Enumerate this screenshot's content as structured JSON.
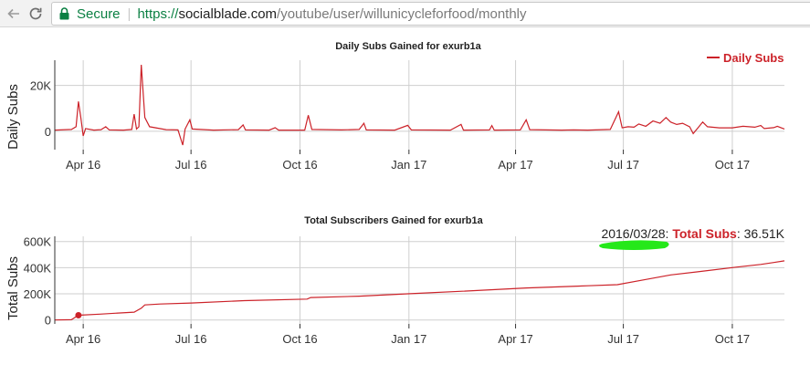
{
  "browser": {
    "back_icon": "back-arrow-icon",
    "reload_icon": "reload-icon",
    "lock_icon": "lock-icon",
    "secure_label": "Secure",
    "url_scheme": "https://",
    "url_host": "socialblade.com",
    "url_path": "/youtube/user/willunicycleforfood/monthly",
    "secure_color": "#0b8043"
  },
  "chart_data": [
    {
      "type": "line",
      "title": "Daily Subs Gained for exurb1a",
      "ylabel": "Daily Subs",
      "legend": "Daily Subs",
      "legend_position": "top-right",
      "color": "#cc2229",
      "grid": true,
      "x_ticks": [
        "Apr 16",
        "Jul 16",
        "Oct 16",
        "Jan 17",
        "Apr 17",
        "Jul 17",
        "Oct 17"
      ],
      "y_ticks": [
        "20K",
        "0"
      ],
      "xlim": [
        "2016-03-08",
        "2017-11-14"
      ],
      "ylim": [
        -8000,
        31000
      ],
      "series": [
        {
          "name": "Daily Subs",
          "points": [
            [
              "2016-03-08",
              500
            ],
            [
              "2016-03-22",
              800
            ],
            [
              "2016-03-26",
              2000
            ],
            [
              "2016-03-28",
              13000
            ],
            [
              "2016-03-30",
              6000
            ],
            [
              "2016-04-01",
              -2000
            ],
            [
              "2016-04-03",
              1200
            ],
            [
              "2016-04-10",
              500
            ],
            [
              "2016-04-16",
              700
            ],
            [
              "2016-04-20",
              2000
            ],
            [
              "2016-04-23",
              600
            ],
            [
              "2016-05-05",
              500
            ],
            [
              "2016-05-12",
              800
            ],
            [
              "2016-05-14",
              7500
            ],
            [
              "2016-05-16",
              1000
            ],
            [
              "2016-05-18",
              2000
            ],
            [
              "2016-05-20",
              29000
            ],
            [
              "2016-05-23",
              6000
            ],
            [
              "2016-05-27",
              2000
            ],
            [
              "2016-06-10",
              700
            ],
            [
              "2016-06-20",
              600
            ],
            [
              "2016-06-24",
              -6000
            ],
            [
              "2016-06-26",
              1000
            ],
            [
              "2016-06-30",
              5000
            ],
            [
              "2016-07-02",
              1000
            ],
            [
              "2016-07-20",
              500
            ],
            [
              "2016-08-10",
              700
            ],
            [
              "2016-08-14",
              2800
            ],
            [
              "2016-08-16",
              600
            ],
            [
              "2016-09-05",
              500
            ],
            [
              "2016-09-10",
              1600
            ],
            [
              "2016-09-13",
              500
            ],
            [
              "2016-10-05",
              500
            ],
            [
              "2016-10-08",
              7000
            ],
            [
              "2016-10-11",
              800
            ],
            [
              "2016-11-05",
              600
            ],
            [
              "2016-11-20",
              800
            ],
            [
              "2016-11-24",
              3500
            ],
            [
              "2016-11-26",
              600
            ],
            [
              "2016-12-20",
              500
            ],
            [
              "2016-12-31",
              2600
            ],
            [
              "2017-01-03",
              600
            ],
            [
              "2017-02-05",
              500
            ],
            [
              "2017-02-14",
              3000
            ],
            [
              "2017-02-16",
              500
            ],
            [
              "2017-03-10",
              600
            ],
            [
              "2017-03-12",
              2500
            ],
            [
              "2017-03-14",
              500
            ],
            [
              "2017-04-05",
              600
            ],
            [
              "2017-04-10",
              5000
            ],
            [
              "2017-04-13",
              700
            ],
            [
              "2017-05-10",
              500
            ],
            [
              "2017-05-20",
              600
            ],
            [
              "2017-06-01",
              500
            ],
            [
              "2017-06-20",
              800
            ],
            [
              "2017-06-27",
              8500
            ],
            [
              "2017-06-30",
              1500
            ],
            [
              "2017-07-05",
              2000
            ],
            [
              "2017-07-10",
              1800
            ],
            [
              "2017-07-14",
              3200
            ],
            [
              "2017-07-20",
              2200
            ],
            [
              "2017-07-26",
              4500
            ],
            [
              "2017-08-01",
              3500
            ],
            [
              "2017-08-06",
              6000
            ],
            [
              "2017-08-10",
              4000
            ],
            [
              "2017-08-15",
              3000
            ],
            [
              "2017-08-20",
              3500
            ],
            [
              "2017-08-26",
              2000
            ],
            [
              "2017-08-29",
              -1000
            ],
            [
              "2017-09-02",
              1500
            ],
            [
              "2017-09-06",
              4000
            ],
            [
              "2017-09-10",
              2000
            ],
            [
              "2017-09-20",
              1500
            ],
            [
              "2017-10-01",
              1500
            ],
            [
              "2017-10-10",
              2200
            ],
            [
              "2017-10-20",
              1800
            ],
            [
              "2017-10-25",
              2500
            ],
            [
              "2017-10-28",
              1200
            ],
            [
              "2017-11-05",
              1600
            ],
            [
              "2017-11-08",
              2200
            ],
            [
              "2017-11-14",
              1000
            ]
          ]
        }
      ]
    },
    {
      "type": "line",
      "title": "Total Subscribers Gained for exurb1a",
      "ylabel": "Total Subs",
      "color": "#cc2229",
      "grid": true,
      "x_ticks": [
        "Apr 16",
        "Jul 16",
        "Oct 16",
        "Jan 17",
        "Apr 17",
        "Jul 17",
        "Oct 17"
      ],
      "y_ticks": [
        "600K",
        "400K",
        "200K",
        "0"
      ],
      "xlim": [
        "2016-03-08",
        "2017-11-14"
      ],
      "ylim": [
        -30000,
        640000
      ],
      "tooltip": {
        "date": "2016/03/28",
        "series_label": "Total Subs",
        "value": "36.51K"
      },
      "marker": [
        "2016-03-28",
        36510
      ],
      "series": [
        {
          "name": "Total Subs",
          "points": [
            [
              "2016-03-08",
              0
            ],
            [
              "2016-03-22",
              2000
            ],
            [
              "2016-03-28",
              36510
            ],
            [
              "2016-04-15",
              45000
            ],
            [
              "2016-05-14",
              60000
            ],
            [
              "2016-05-20",
              90000
            ],
            [
              "2016-05-23",
              115000
            ],
            [
              "2016-06-05",
              122000
            ],
            [
              "2016-07-01",
              130000
            ],
            [
              "2016-08-15",
              148000
            ],
            [
              "2016-10-07",
              160000
            ],
            [
              "2016-10-10",
              172000
            ],
            [
              "2016-11-20",
              182000
            ],
            [
              "2016-12-31",
              200000
            ],
            [
              "2017-02-15",
              220000
            ],
            [
              "2017-04-10",
              245000
            ],
            [
              "2017-06-01",
              262000
            ],
            [
              "2017-06-26",
              270000
            ],
            [
              "2017-07-20",
              310000
            ],
            [
              "2017-08-10",
              345000
            ],
            [
              "2017-09-05",
              372000
            ],
            [
              "2017-10-05",
              405000
            ],
            [
              "2017-10-25",
              425000
            ],
            [
              "2017-11-05",
              440000
            ],
            [
              "2017-11-14",
              452000
            ]
          ]
        }
      ]
    }
  ]
}
